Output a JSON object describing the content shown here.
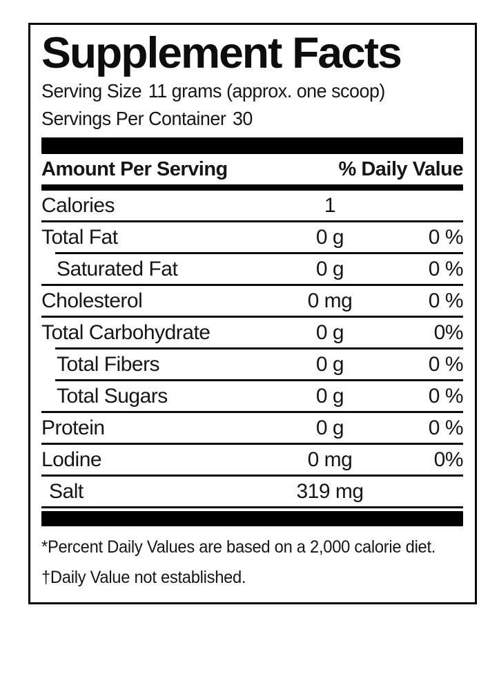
{
  "panel": {
    "title": "Supplement Facts",
    "serving_size": {
      "label": "Serving Size",
      "value": "11 grams (approx. one scoop)"
    },
    "servings_per_container": {
      "label": "Servings Per Container",
      "value": "30"
    },
    "header": {
      "amount_per_serving": "Amount Per Serving",
      "daily_value": "% Daily Value"
    },
    "rows": [
      {
        "name": "Calories",
        "amount": "1",
        "dv": "",
        "indent": 0,
        "divider": "full"
      },
      {
        "name": "Total Fat",
        "amount": "0 g",
        "dv": "0 %",
        "indent": 0,
        "divider": "indent"
      },
      {
        "name": "Saturated Fat",
        "amount": "0 g",
        "dv": "0 %",
        "indent": 2,
        "divider": "full"
      },
      {
        "name": "Cholesterol",
        "amount": "0 mg",
        "dv": "0 %",
        "indent": 0,
        "divider": "full"
      },
      {
        "name": "Total Carbohydrate",
        "amount": "0 g",
        "dv": "0%",
        "indent": 0,
        "divider": "indent"
      },
      {
        "name": "Total Fibers",
        "amount": "0 g",
        "dv": "0 %",
        "indent": 2,
        "divider": "indent"
      },
      {
        "name": "Total Sugars",
        "amount": "0 g",
        "dv": "0 %",
        "indent": 2,
        "divider": "full"
      },
      {
        "name": "Protein",
        "amount": "0 g",
        "dv": "0 %",
        "indent": 0,
        "divider": "full"
      },
      {
        "name": "Lodine",
        "amount": "0 mg",
        "dv": "0%",
        "indent": 0,
        "divider": "full"
      },
      {
        "name": "Salt",
        "amount": "319 mg",
        "dv": "",
        "indent": 1,
        "divider": "full"
      }
    ],
    "footnotes": [
      "*Percent Daily Values are based on a 2,000 calorie diet.",
      "†Daily Value not established."
    ],
    "colors": {
      "ink": "#161616",
      "bar": "#000000",
      "background": "#ffffff"
    }
  }
}
